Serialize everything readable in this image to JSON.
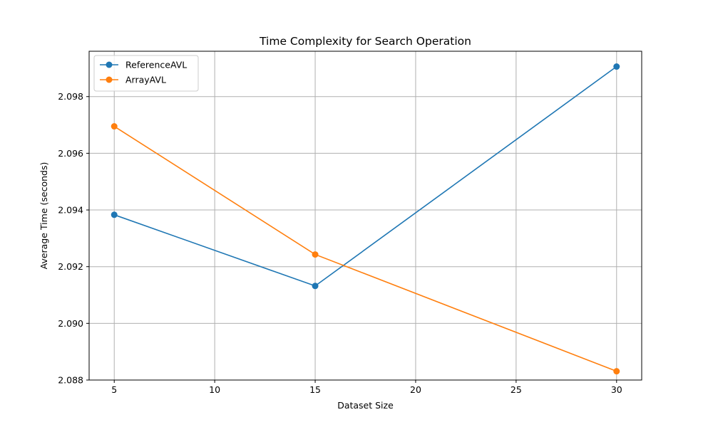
{
  "chart_data": {
    "type": "line",
    "title": "Time Complexity for Search Operation",
    "xlabel": "Dataset Size",
    "ylabel": "Average Time (seconds)",
    "x": [
      5,
      15,
      30
    ],
    "series": [
      {
        "name": "ReferenceAVL",
        "color": "#1f77b4",
        "values": [
          2.09383,
          2.09132,
          2.09906
        ]
      },
      {
        "name": "ArrayAVL",
        "color": "#ff7f0e",
        "values": [
          2.09695,
          2.09243,
          2.08831
        ]
      }
    ],
    "xlim": [
      3.75,
      31.25
    ],
    "ylim": [
      2.088,
      2.0996
    ],
    "xticks": [
      5,
      10,
      15,
      20,
      25,
      30
    ],
    "yticks": [
      2.088,
      2.09,
      2.092,
      2.094,
      2.096,
      2.098
    ],
    "xtick_labels": [
      "5",
      "10",
      "15",
      "20",
      "25",
      "30"
    ],
    "ytick_labels": [
      "2.088",
      "2.090",
      "2.092",
      "2.094",
      "2.096",
      "2.098"
    ],
    "grid": true,
    "legend_position": "top-left"
  }
}
